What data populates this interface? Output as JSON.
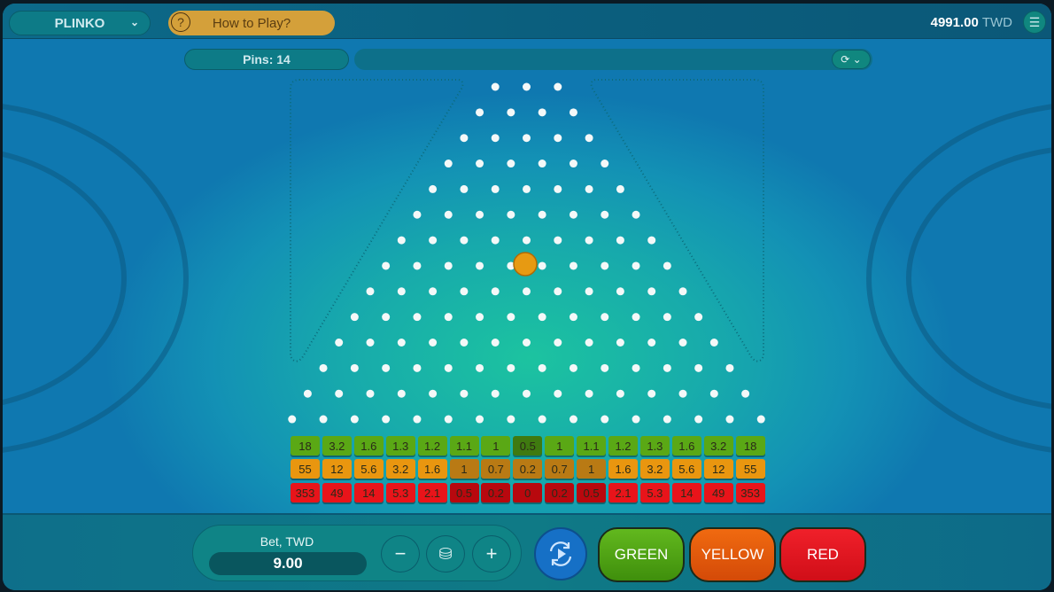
{
  "header": {
    "game": "PLINKO",
    "how_to_play": "How to Play?",
    "balance": "4991.00",
    "currency": "TWD",
    "menu_icon": "menu-icon"
  },
  "controls": {
    "pins_label": "Pins: 14",
    "history_icon": "history-icon"
  },
  "board": {
    "pin_rows": 14,
    "ball_color": "#e79a12",
    "multipliers": {
      "green": [
        "18",
        "3.2",
        "1.6",
        "1.3",
        "1.2",
        "1.1",
        "1",
        "0.5",
        "1",
        "1.1",
        "1.2",
        "1.3",
        "1.6",
        "3.2",
        "18"
      ],
      "yellow": [
        "55",
        "12",
        "5.6",
        "3.2",
        "1.6",
        "1",
        "0.7",
        "0.2",
        "0.7",
        "1",
        "1.6",
        "3.2",
        "5.6",
        "12",
        "55"
      ],
      "red": [
        "353",
        "49",
        "14",
        "5.3",
        "2.1",
        "0.5",
        "0.2",
        "0",
        "0.2",
        "0.5",
        "2.1",
        "5.3",
        "14",
        "49",
        "353"
      ]
    }
  },
  "bet": {
    "label": "Bet, TWD",
    "value": "9.00",
    "minus": "−",
    "plus": "+"
  },
  "play": {
    "green": "GREEN",
    "yellow": "YELLOW",
    "red": "RED"
  },
  "colors": {
    "green": "#4fa315",
    "yellow": "#e8940e",
    "red": "#e0141a"
  }
}
